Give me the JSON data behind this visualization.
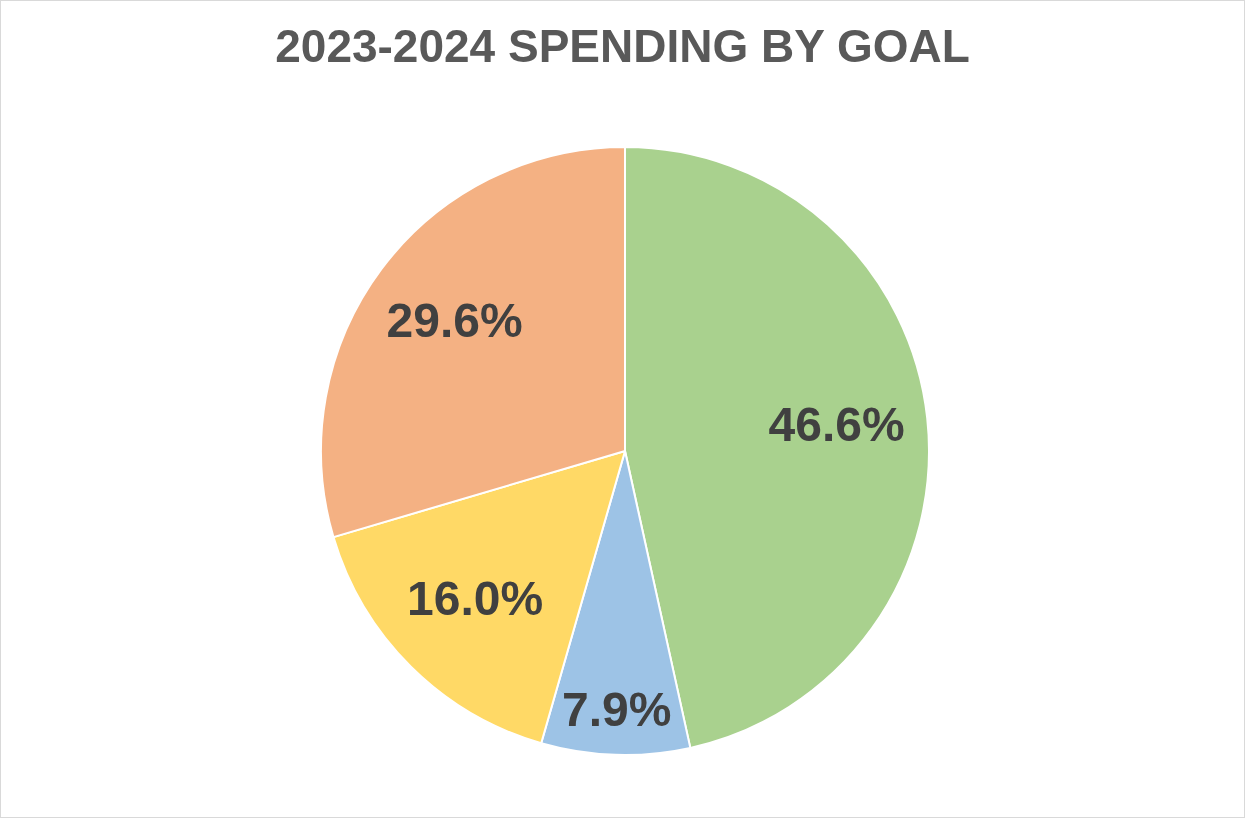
{
  "chart_data": {
    "type": "pie",
    "title": "2023-2024 SPENDING BY GOAL",
    "categories": [
      null,
      null,
      null,
      null
    ],
    "values": [
      46.6,
      7.9,
      16.0,
      29.6
    ],
    "colors": [
      "#a9d18e",
      "#9dc3e6",
      "#ffd966",
      "#f4b183"
    ],
    "value_labels": [
      "46.6%",
      "7.9%",
      "16.0%",
      "29.6%"
    ],
    "legend": false
  }
}
